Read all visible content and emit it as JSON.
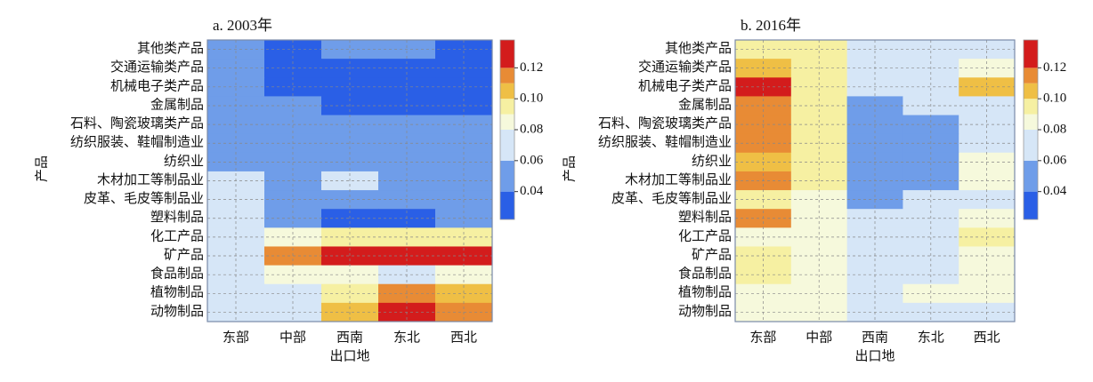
{
  "chart_data": [
    {
      "type": "contour",
      "title": "a. 2003年",
      "x_label": "出口地",
      "y_label": "产品",
      "x": [
        "东部",
        "中部",
        "西南",
        "东北",
        "西北"
      ],
      "y": [
        "其他类产品",
        "交通运输类产品",
        "机械电子类产品",
        "金属制品",
        "石料、陶瓷玻璃类产品",
        "纺织服装、鞋帽制造业",
        "纺织业",
        "木材加工等制品业",
        "皮革、毛皮等制品业",
        "塑料制品",
        "化工产品",
        "矿产品",
        "食品制品",
        "植物制品",
        "动物制品"
      ],
      "z": [
        [
          0.05,
          0.03,
          0.04,
          0.045,
          0.03
        ],
        [
          0.05,
          0.03,
          0.03,
          0.03,
          0.03
        ],
        [
          0.05,
          0.035,
          0.03,
          0.03,
          0.03
        ],
        [
          0.05,
          0.04,
          0.035,
          0.03,
          0.03
        ],
        [
          0.05,
          0.05,
          0.045,
          0.045,
          0.04
        ],
        [
          0.05,
          0.05,
          0.05,
          0.05,
          0.05
        ],
        [
          0.045,
          0.05,
          0.05,
          0.05,
          0.05
        ],
        [
          0.07,
          0.05,
          0.065,
          0.05,
          0.05
        ],
        [
          0.065,
          0.05,
          0.05,
          0.05,
          0.05
        ],
        [
          0.07,
          0.04,
          0.035,
          0.035,
          0.04
        ],
        [
          0.075,
          0.085,
          0.09,
          0.09,
          0.09
        ],
        [
          0.075,
          0.115,
          0.125,
          0.125,
          0.125
        ],
        [
          0.07,
          0.085,
          0.085,
          0.07,
          0.08
        ],
        [
          0.07,
          0.075,
          0.09,
          0.11,
          0.105
        ],
        [
          0.065,
          0.075,
          0.1,
          0.125,
          0.115
        ]
      ],
      "clim": [
        0.022,
        0.138
      ],
      "cticks": [
        0.04,
        0.06,
        0.08,
        {
          "value": 0.1,
          "label": "0.10"
        },
        0.12
      ],
      "levels": [
        0.04,
        0.06,
        0.08,
        0.09,
        0.1,
        0.11,
        0.12
      ],
      "colors": [
        "#2a5fe6",
        "#6f9de9",
        "#d6e6f7",
        "#f6f9dc",
        "#f6f0a2",
        "#efbf45",
        "#e88b35",
        "#d31c1c"
      ]
    },
    {
      "type": "contour",
      "title": "b. 2016年",
      "x_label": "出口地",
      "y_label": "产品",
      "x": [
        "东部",
        "中部",
        "西南",
        "东北",
        "西北"
      ],
      "y": [
        "其他类产品",
        "交通运输类产品",
        "机械电子类产品",
        "金属制品",
        "石料、陶瓷玻璃类产品",
        "纺织服装、鞋帽制造业",
        "纺织业",
        "木材加工等制品业",
        "皮革、毛皮等制品业",
        "塑料制品",
        "化工产品",
        "矿产品",
        "食品制品",
        "植物制品",
        "动物制品"
      ],
      "z": [
        [
          0.095,
          0.09,
          0.065,
          0.07,
          0.075
        ],
        [
          0.105,
          0.09,
          0.07,
          0.065,
          0.08
        ],
        [
          0.125,
          0.095,
          0.065,
          0.065,
          0.1
        ],
        [
          0.11,
          0.09,
          0.055,
          0.06,
          0.075
        ],
        [
          0.11,
          0.09,
          0.045,
          0.055,
          0.07
        ],
        [
          0.11,
          0.09,
          0.04,
          0.05,
          0.07
        ],
        [
          0.105,
          0.09,
          0.04,
          0.05,
          0.08
        ],
        [
          0.11,
          0.09,
          0.04,
          0.055,
          0.085
        ],
        [
          0.09,
          0.085,
          0.055,
          0.065,
          0.075
        ],
        [
          0.11,
          0.085,
          0.065,
          0.07,
          0.08
        ],
        [
          0.085,
          0.08,
          0.07,
          0.075,
          0.09
        ],
        [
          0.09,
          0.08,
          0.06,
          0.07,
          0.085
        ],
        [
          0.09,
          0.085,
          0.075,
          0.075,
          0.08
        ],
        [
          0.085,
          0.08,
          0.075,
          0.08,
          0.08
        ],
        [
          0.08,
          0.08,
          0.075,
          0.075,
          0.075
        ]
      ],
      "clim": [
        0.022,
        0.138
      ],
      "cticks": [
        0.04,
        0.06,
        0.08,
        {
          "value": 0.1,
          "label": "0.10"
        },
        0.12
      ],
      "levels": [
        0.04,
        0.06,
        0.08,
        0.09,
        0.1,
        0.11,
        0.12
      ],
      "colors": [
        "#2a5fe6",
        "#6f9de9",
        "#d6e6f7",
        "#f6f9dc",
        "#f6f0a2",
        "#efbf45",
        "#e88b35",
        "#d31c1c"
      ]
    }
  ]
}
